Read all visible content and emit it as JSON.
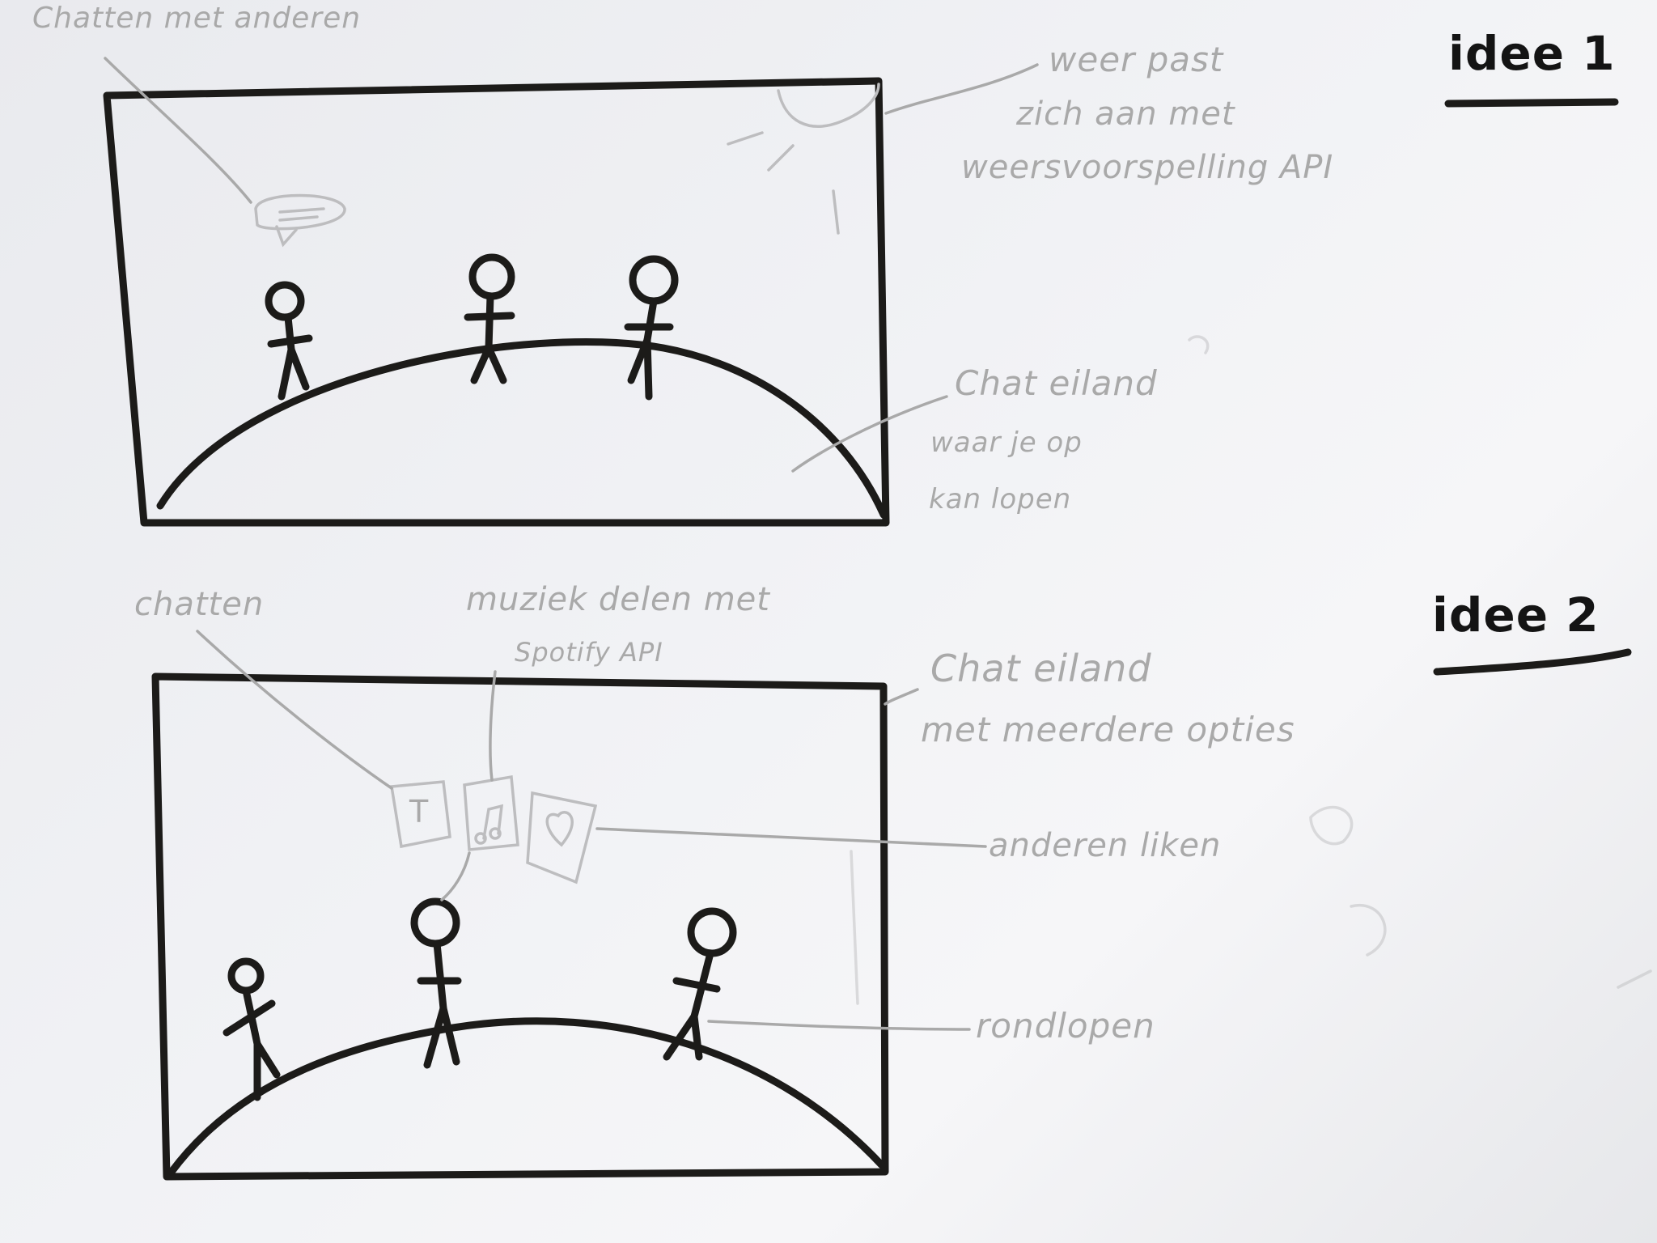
{
  "idea1": {
    "title": "idee 1",
    "annotations": {
      "chat": "Chatten met anderen",
      "weather_line1": "weer past",
      "weather_line2": "zich aan met",
      "weather_line3": "weersvoorspelling API",
      "island_line1": "Chat eiland",
      "island_line2": "waar je op",
      "island_line3": "kan lopen"
    }
  },
  "idea2": {
    "title": "idee 2",
    "annotations": {
      "chat": "chatten",
      "music_line1": "muziek delen met",
      "music_line2": "Spotify API",
      "island_line1": "Chat eiland",
      "island_line2": "met meerdere opties",
      "like": "anderen liken",
      "walk": "rondlopen",
      "icon_text": "T"
    }
  },
  "colors": {
    "ink": "#1c1b19",
    "pencil": "#a9a9a9",
    "paper": "#f1f2f5"
  }
}
